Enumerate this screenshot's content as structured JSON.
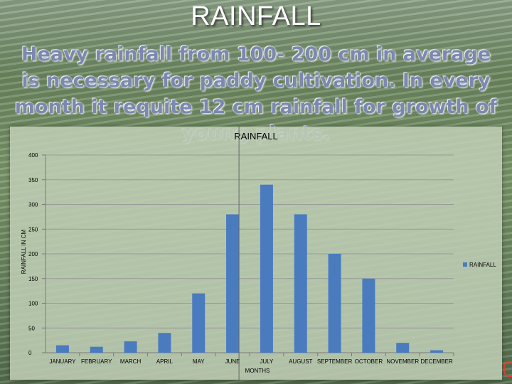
{
  "slide": {
    "title": "RAINFALL",
    "subtitle": "Heavy rainfall from 100- 200 cm in average  is necessary for paddy cultivation. In every month it requite 12 cm rainfall for growth of young plants."
  },
  "colors": {
    "bar": "#4a7bbf",
    "grid": "#9a9a9a",
    "axis": "#7a7a7a",
    "divider": "#666666"
  },
  "chart_data": {
    "type": "bar",
    "title": "RAINFALL",
    "xlabel": "MONTHS",
    "ylabel": "RAINFALL IN CM",
    "categories": [
      "JANUARY",
      "FEBRUARY",
      "MARCH",
      "APRIL",
      "MAY",
      "JUNE",
      "JULY",
      "AUGUST",
      "SEPTEMBER",
      "OCTOBER",
      "NOVEMBER",
      "DECEMBER"
    ],
    "series": [
      {
        "name": "RAINFALL",
        "values": [
          15,
          12,
          23,
          40,
          120,
          280,
          340,
          280,
          200,
          150,
          20,
          5
        ]
      }
    ],
    "ylim": [
      0,
      400
    ],
    "yticks": [
      0,
      50,
      100,
      150,
      200,
      250,
      300,
      350,
      400
    ],
    "grid": true,
    "legend_position": "right"
  }
}
